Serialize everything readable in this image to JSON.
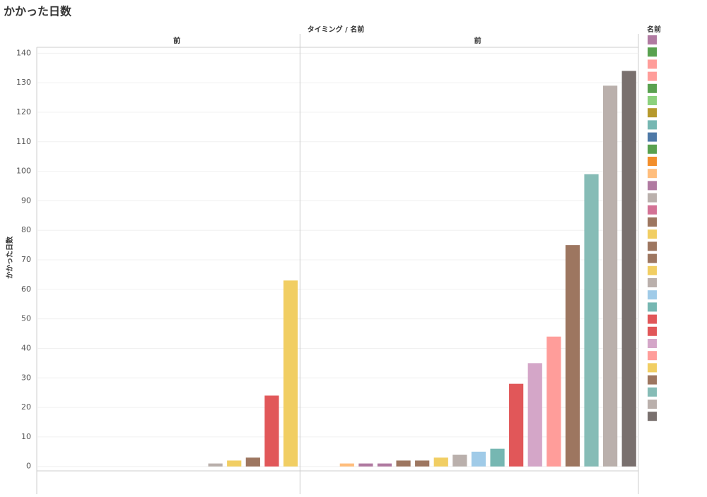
{
  "chart_data": {
    "type": "bar",
    "title": "かかった日数",
    "column_header": "タイミング / 名前",
    "y_label": "かかった日数",
    "ylim": [
      -1.5,
      142
    ],
    "yticks": [
      0,
      10,
      20,
      30,
      40,
      50,
      60,
      70,
      80,
      90,
      100,
      110,
      120,
      130,
      140
    ],
    "grid": true,
    "panels": [
      {
        "header": "前",
        "categories": [
          null,
          null,
          null,
          null,
          null,
          null,
          null,
          null,
          null,
          null,
          null,
          null,
          null,
          null
        ],
        "values": [
          null,
          null,
          null,
          null,
          null,
          null,
          null,
          null,
          null,
          1,
          2,
          3,
          24,
          63
        ],
        "colors": [
          null,
          null,
          null,
          null,
          null,
          null,
          null,
          null,
          null,
          "#bab0ac",
          "#f1ce63",
          "#9d7660",
          "#e15759",
          "#f1ce63"
        ]
      },
      {
        "header": "前",
        "categories": [
          null,
          null,
          null,
          null,
          null,
          null,
          null,
          null,
          null,
          null,
          null,
          null,
          null,
          null,
          null,
          null,
          null,
          null
        ],
        "values": [
          null,
          null,
          1,
          1,
          1,
          2,
          2,
          3,
          4,
          5,
          6,
          28,
          35,
          44,
          75,
          99,
          129,
          134
        ],
        "colors": [
          null,
          null,
          "#ffbe7d",
          "#b07aa1",
          "#b07aa1",
          "#9d7660",
          "#9d7660",
          "#f1ce63",
          "#bab0ac",
          "#a0cbe8",
          "#76b7b2",
          "#e15759",
          "#d4a6c8",
          "#ff9d9a",
          "#9d7660",
          "#86bcb6",
          "#bab0ac",
          "#79706e"
        ]
      }
    ],
    "legend": {
      "title": "名前",
      "colors": [
        "#b07aa1",
        "#59a14f",
        "#ff9d9a",
        "#ff9d9a",
        "#59a14f",
        "#8cd17d",
        "#b6992d",
        "#76b7b2",
        "#4e79a7",
        "#59a14f",
        "#f28e2b",
        "#ffbe7d",
        "#b07aa1",
        "#bab0ac",
        "#d37295",
        "#9d7660",
        "#f1ce63",
        "#9d7660",
        "#9d7660",
        "#f1ce63",
        "#bab0ac",
        "#a0cbe8",
        "#76b7b2",
        "#e15759",
        "#e15759",
        "#d4a6c8",
        "#ff9d9a",
        "#f1ce63",
        "#9d7660",
        "#86bcb6",
        "#bab0ac",
        "#79706e"
      ]
    }
  }
}
